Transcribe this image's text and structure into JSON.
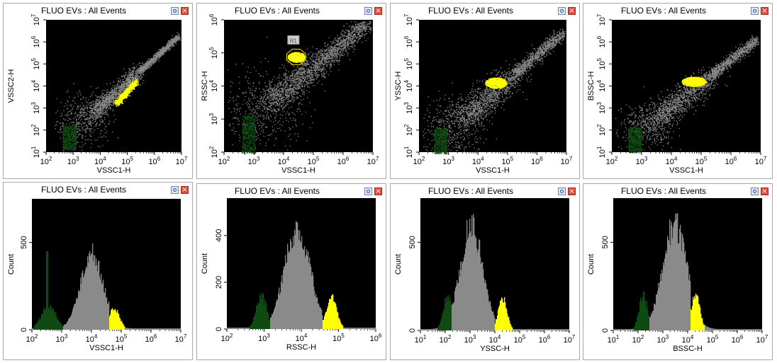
{
  "window": {
    "panel_title": "FLUO EVs : All Events",
    "options_icon": "options-icon",
    "close_icon": "close-icon",
    "close_glyph": "×"
  },
  "colors": {
    "plot_bg": "#000000",
    "events": "#8a8a8a",
    "gated": "#ffff00",
    "noise": "#0e4a12",
    "gate_outline": "#ffdd00",
    "gate_label_bg": "#cfcfcf"
  },
  "panels": [
    {
      "id": "p1",
      "kind": "dot",
      "title": "FLUO EVs : All Events",
      "xlabel": "VSSC1-H",
      "ylabel": "VSSC2-H",
      "x_ticks": [
        {
          "b": "10",
          "e": "2"
        },
        {
          "b": "10",
          "e": "3"
        },
        {
          "b": "10",
          "e": "4"
        },
        {
          "b": "10",
          "e": "5"
        },
        {
          "b": "10",
          "e": "6"
        },
        {
          "b": "10",
          "e": "7"
        }
      ],
      "y_ticks": [
        {
          "b": "10",
          "e": "1"
        },
        {
          "b": "10",
          "e": "2"
        },
        {
          "b": "10",
          "e": "3"
        },
        {
          "b": "10",
          "e": "4"
        },
        {
          "b": "10",
          "e": "5"
        },
        {
          "b": "10",
          "e": "6"
        },
        {
          "b": "10",
          "e": "7"
        }
      ]
    },
    {
      "id": "p2",
      "kind": "dot",
      "title": "FLUO EVs : All Events",
      "xlabel": "VSSC1-H",
      "ylabel": "RSSC-H",
      "gate_label": "R1",
      "x_ticks": [
        {
          "b": "10",
          "e": "2"
        },
        {
          "b": "10",
          "e": "3"
        },
        {
          "b": "10",
          "e": "4"
        },
        {
          "b": "10",
          "e": "5"
        },
        {
          "b": "10",
          "e": "6"
        },
        {
          "b": "10",
          "e": "7"
        }
      ],
      "y_ticks": [
        {
          "b": "10",
          "e": "2"
        },
        {
          "b": "10",
          "e": "3"
        },
        {
          "b": "10",
          "e": "4"
        },
        {
          "b": "10",
          "e": "5"
        },
        {
          "b": "10",
          "e": "6"
        }
      ]
    },
    {
      "id": "p3",
      "kind": "dot",
      "title": "FLUO EVs : All Events",
      "xlabel": "VSSC1-H",
      "ylabel": "YSSC-H",
      "x_ticks": [
        {
          "b": "10",
          "e": "2"
        },
        {
          "b": "10",
          "e": "3"
        },
        {
          "b": "10",
          "e": "4"
        },
        {
          "b": "10",
          "e": "5"
        },
        {
          "b": "10",
          "e": "6"
        },
        {
          "b": "10",
          "e": "7"
        }
      ],
      "y_ticks": [
        {
          "b": "10",
          "e": "1"
        },
        {
          "b": "10",
          "e": "2"
        },
        {
          "b": "10",
          "e": "3"
        },
        {
          "b": "10",
          "e": "4"
        },
        {
          "b": "10",
          "e": "5"
        },
        {
          "b": "10",
          "e": "6"
        },
        {
          "b": "10",
          "e": "7"
        }
      ]
    },
    {
      "id": "p4",
      "kind": "dot",
      "title": "FLUO EVs : All Events",
      "xlabel": "VSSC1-H",
      "ylabel": "BSSC-H",
      "x_ticks": [
        {
          "b": "10",
          "e": "2"
        },
        {
          "b": "10",
          "e": "3"
        },
        {
          "b": "10",
          "e": "4"
        },
        {
          "b": "10",
          "e": "5"
        },
        {
          "b": "10",
          "e": "6"
        },
        {
          "b": "10",
          "e": "7"
        }
      ],
      "y_ticks": [
        {
          "b": "10",
          "e": "1"
        },
        {
          "b": "10",
          "e": "2"
        },
        {
          "b": "10",
          "e": "3"
        },
        {
          "b": "10",
          "e": "4"
        },
        {
          "b": "10",
          "e": "5"
        },
        {
          "b": "10",
          "e": "6"
        },
        {
          "b": "10",
          "e": "7"
        }
      ]
    },
    {
      "id": "p5",
      "kind": "hist",
      "title": "FLUO EVs : All Events",
      "xlabel": "VSSC1-H",
      "ylabel": "Count",
      "x_ticks": [
        {
          "b": "10",
          "e": "2"
        },
        {
          "b": "10",
          "e": "3"
        },
        {
          "b": "10",
          "e": "4"
        },
        {
          "b": "10",
          "e": "5"
        },
        {
          "b": "10",
          "e": "6"
        },
        {
          "b": "10",
          "e": "7"
        }
      ],
      "y_ticks": [
        "0",
        "500"
      ]
    },
    {
      "id": "p6",
      "kind": "hist",
      "title": "FLUO EVs : All Events",
      "xlabel": "RSSC-H",
      "ylabel": "Count",
      "x_ticks": [
        {
          "b": "10",
          "e": "2"
        },
        {
          "b": "10",
          "e": "3"
        },
        {
          "b": "10",
          "e": "4"
        },
        {
          "b": "10",
          "e": "5"
        },
        {
          "b": "10",
          "e": "6"
        }
      ],
      "y_ticks": [
        "0",
        "200",
        "400"
      ]
    },
    {
      "id": "p7",
      "kind": "hist",
      "title": "FLUO EVs : All Events",
      "xlabel": "YSSC-H",
      "ylabel": "Count",
      "x_ticks": [
        {
          "b": "10",
          "e": "1"
        },
        {
          "b": "10",
          "e": "2"
        },
        {
          "b": "10",
          "e": "3"
        },
        {
          "b": "10",
          "e": "4"
        },
        {
          "b": "10",
          "e": "5"
        },
        {
          "b": "10",
          "e": "6"
        },
        {
          "b": "10",
          "e": "7"
        }
      ],
      "y_ticks": [
        "0",
        "500"
      ]
    },
    {
      "id": "p8",
      "kind": "hist",
      "title": "FLUO EVs : All Events",
      "xlabel": "BSSC-H",
      "ylabel": "Count",
      "x_ticks": [
        {
          "b": "10",
          "e": "1"
        },
        {
          "b": "10",
          "e": "2"
        },
        {
          "b": "10",
          "e": "3"
        },
        {
          "b": "10",
          "e": "4"
        },
        {
          "b": "10",
          "e": "5"
        },
        {
          "b": "10",
          "e": "6"
        },
        {
          "b": "10",
          "e": "7"
        }
      ],
      "y_ticks": [
        "0",
        "500"
      ]
    }
  ]
}
